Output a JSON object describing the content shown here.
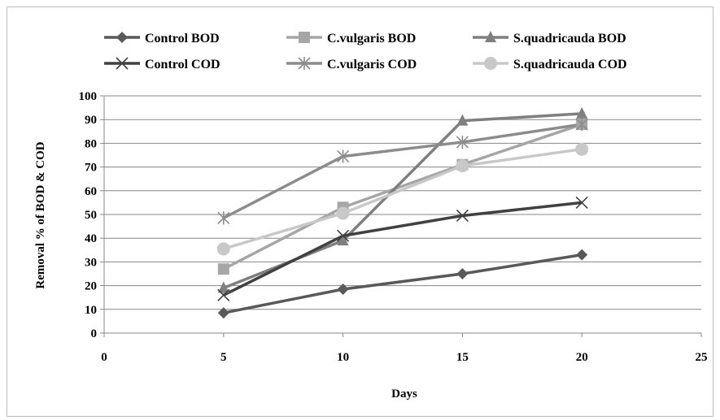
{
  "chart_data": {
    "type": "line",
    "title": "",
    "xlabel": "Days",
    "ylabel": "Removal % of BOD & COD",
    "xlim": [
      0,
      25
    ],
    "ylim": [
      0,
      100
    ],
    "x_ticks": [
      0,
      5,
      10,
      15,
      20,
      25
    ],
    "y_ticks": [
      0,
      10,
      20,
      30,
      40,
      50,
      60,
      70,
      80,
      90,
      100
    ],
    "grid": "horizontal",
    "legend_position": "top",
    "x": [
      5,
      10,
      15,
      20
    ],
    "series": [
      {
        "name": "Control BOD",
        "values": [
          8.5,
          18.5,
          25,
          33
        ],
        "color": "#595959",
        "marker": "diamond"
      },
      {
        "name": "C.vulgaris BOD",
        "values": [
          27,
          53,
          71,
          88
        ],
        "color": "#a6a6a6",
        "marker": "square"
      },
      {
        "name": "S.quadricauda BOD",
        "values": [
          19,
          39,
          89.5,
          92.5
        ],
        "color": "#7f7f7f",
        "marker": "triangle"
      },
      {
        "name": "Control COD",
        "values": [
          16,
          41,
          49.5,
          55
        ],
        "color": "#404040",
        "marker": "x"
      },
      {
        "name": "C.vulgaris COD",
        "values": [
          48.5,
          74.5,
          80.5,
          88
        ],
        "color": "#8c8c8c",
        "marker": "star"
      },
      {
        "name": "S.quadricauda COD",
        "values": [
          35.5,
          50.5,
          70.5,
          77.5
        ],
        "color": "#c8c8c8",
        "marker": "circle"
      }
    ]
  }
}
